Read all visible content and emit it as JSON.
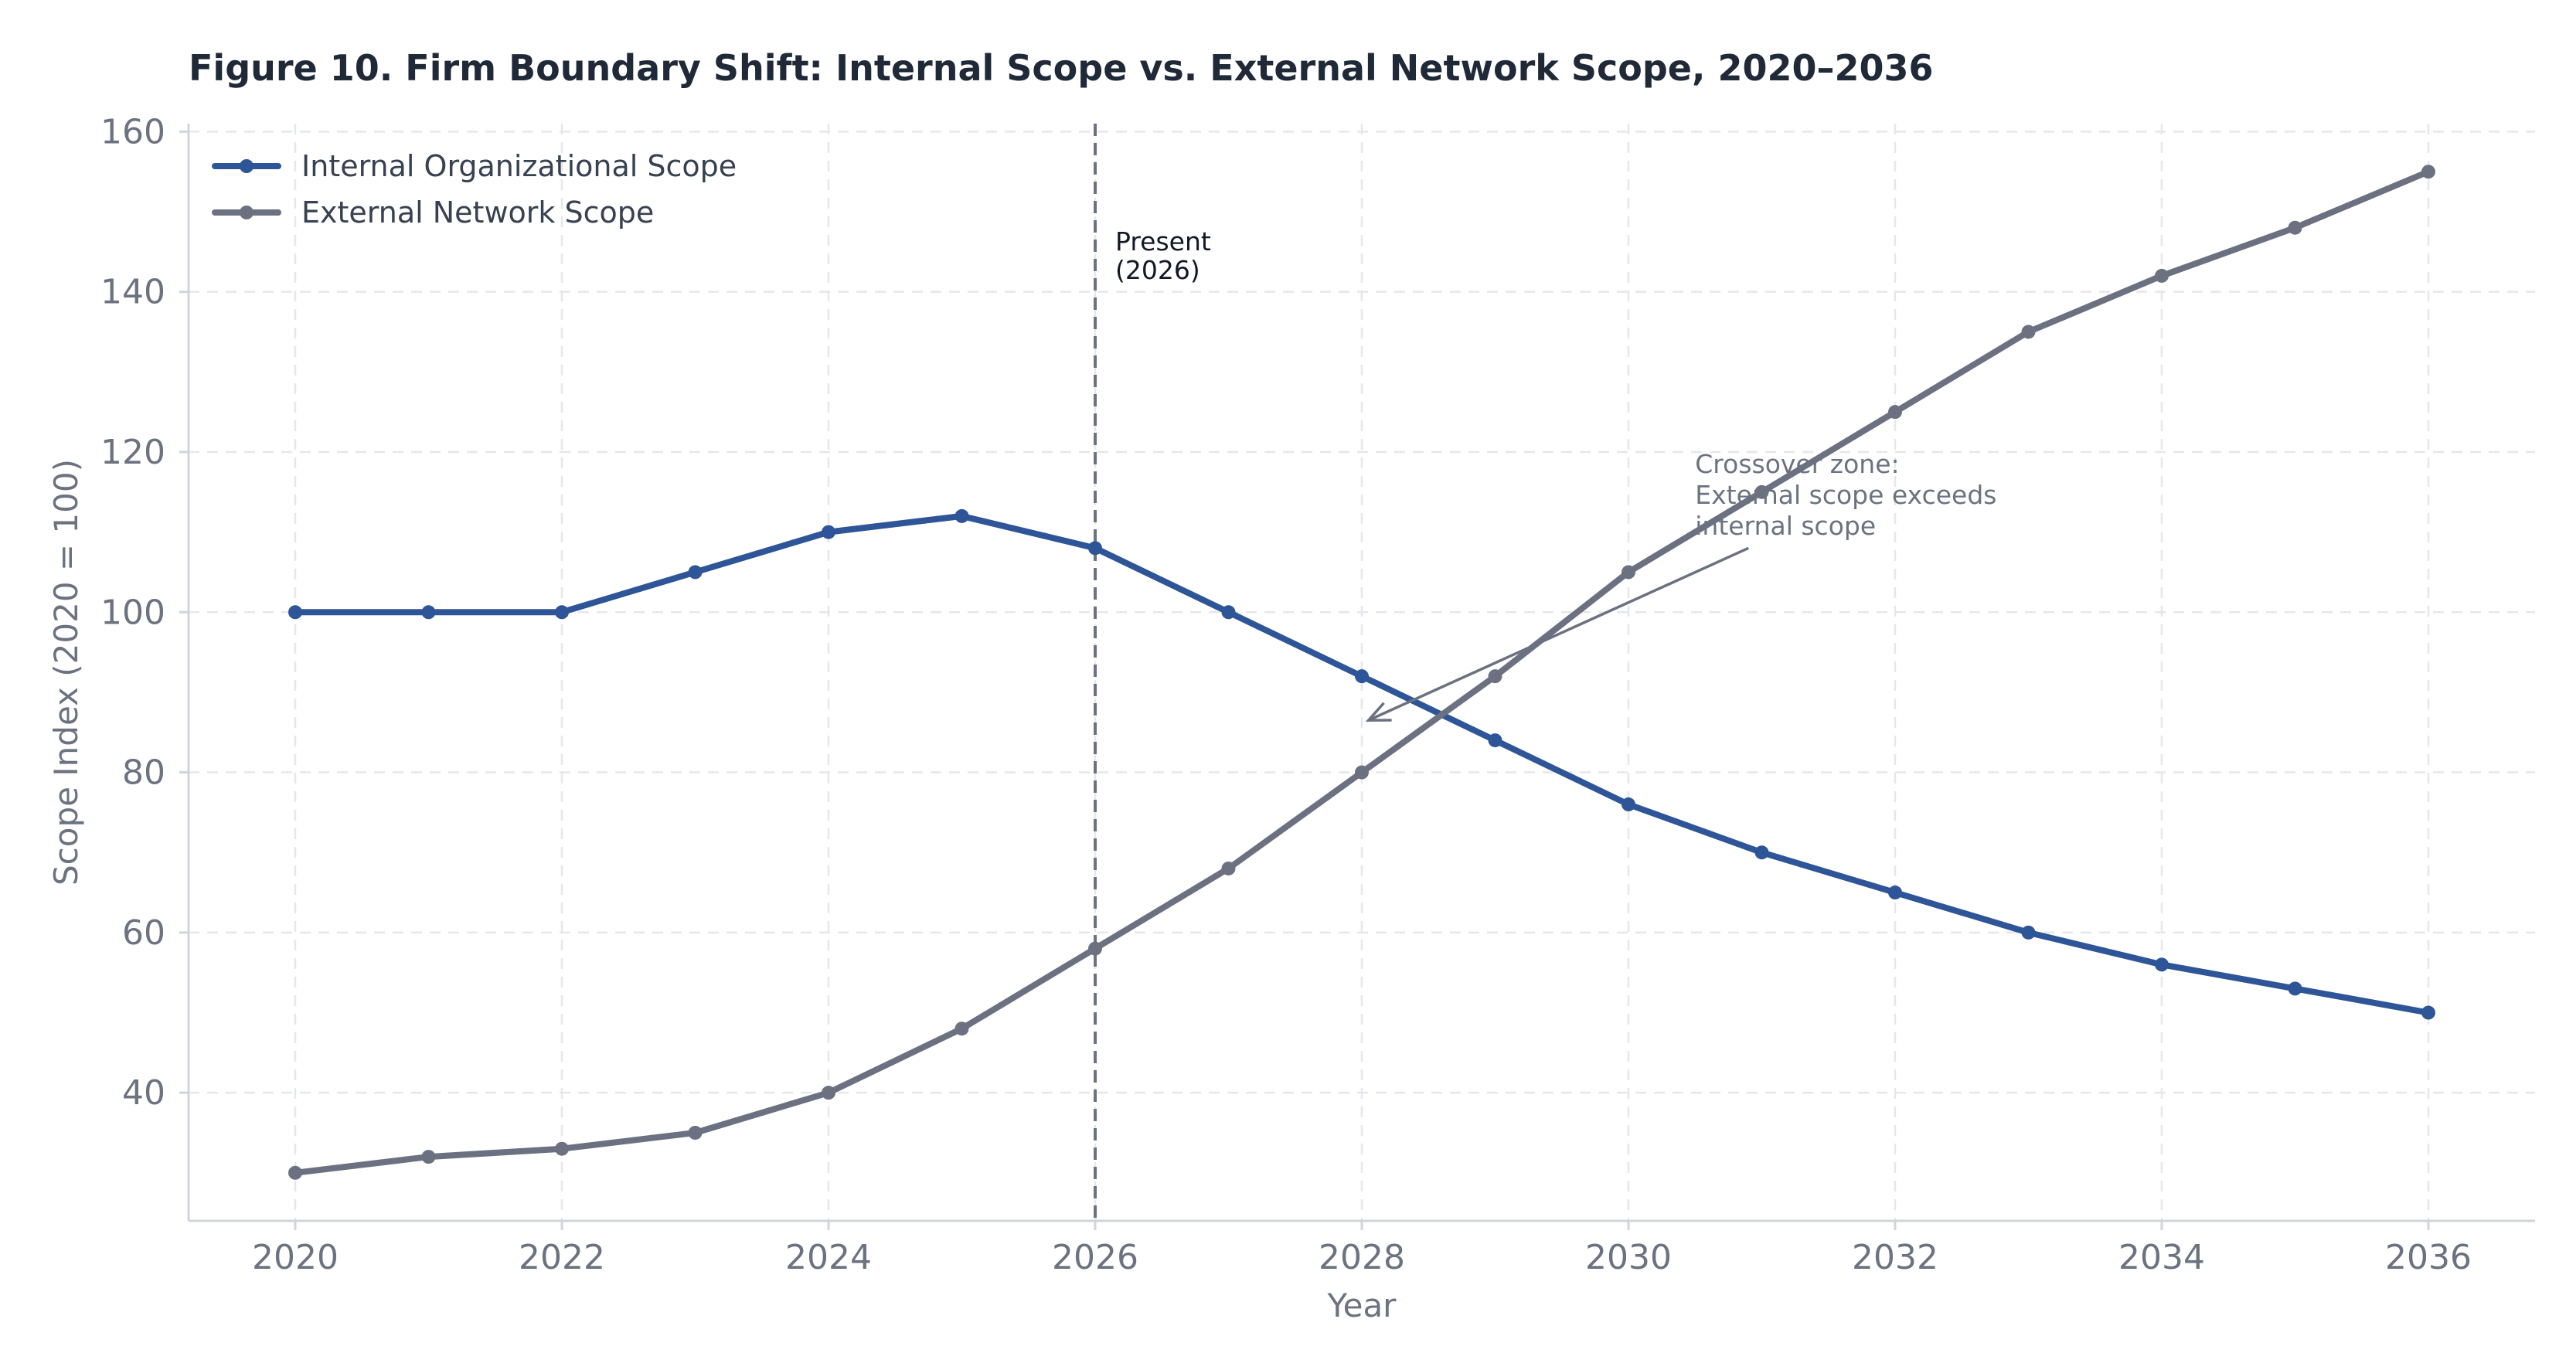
{
  "colors": {
    "internal": "#2e5597",
    "external": "#6b7180",
    "present_line": "#6b7280",
    "annotation_arrow": "#6b7180"
  },
  "chart_data": {
    "type": "line",
    "title": "Figure 10.  Firm Boundary Shift: Internal Scope vs. External Network Scope, 2020–2036",
    "xlabel": "Year",
    "ylabel": "Scope Index (2020 = 100)",
    "x": [
      2020,
      2021,
      2022,
      2023,
      2024,
      2025,
      2026,
      2027,
      2028,
      2029,
      2030,
      2031,
      2032,
      2033,
      2034,
      2035,
      2036
    ],
    "x_ticks": [
      "2020",
      "2022",
      "2024",
      "2026",
      "2028",
      "2030",
      "2032",
      "2034",
      "2036"
    ],
    "y_ticks": [
      "40",
      "60",
      "80",
      "100",
      "120",
      "140",
      "160"
    ],
    "xlim": [
      2019.2,
      2036.8
    ],
    "ylim": [
      24,
      161
    ],
    "grid": true,
    "legend_position": "top-left",
    "series": [
      {
        "name": "Internal Organizational Scope",
        "color_key": "internal",
        "values": [
          100,
          100,
          100,
          105,
          110,
          112,
          108,
          100,
          92,
          84,
          76,
          70,
          65,
          60,
          56,
          53,
          50
        ]
      },
      {
        "name": "External Network Scope",
        "color_key": "external",
        "values": [
          30,
          32,
          33,
          35,
          40,
          48,
          58,
          68,
          80,
          92,
          105,
          115,
          125,
          135,
          142,
          148,
          155
        ]
      }
    ],
    "annotations": {
      "present": {
        "x": 2026,
        "lines": [
          "Present",
          "(2026)"
        ]
      },
      "crossover": {
        "lines": [
          "Crossover zone:",
          "External scope exceeds",
          "internal scope"
        ],
        "text_at": {
          "x": 2030.5,
          "y": 114
        },
        "arrow_from": {
          "x": 2030.9,
          "y": 108
        },
        "arrow_to": {
          "x": 2028.05,
          "y": 86.5
        }
      }
    }
  }
}
